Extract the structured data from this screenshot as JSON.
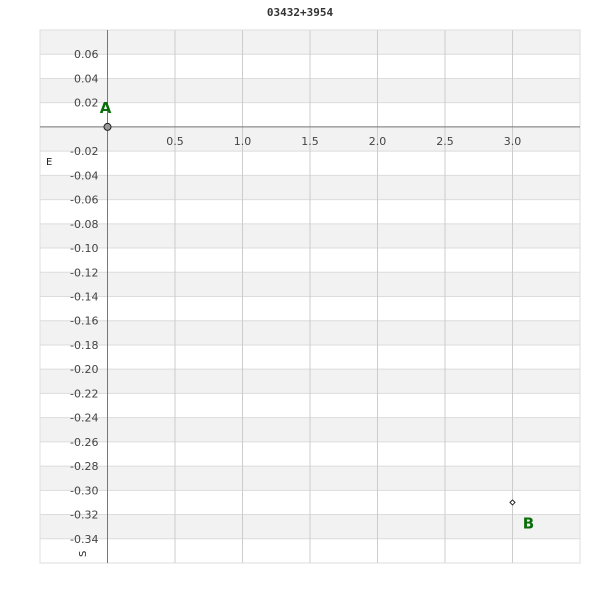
{
  "chart_data": {
    "type": "scatter",
    "title": "03432+3954",
    "xlabel": "",
    "ylabel": "",
    "xlim": [
      -0.5,
      3.5
    ],
    "ylim": [
      -0.36,
      0.08
    ],
    "x_ticks": [
      "0.5",
      "1.0",
      "1.5",
      "2.0",
      "2.5",
      "3.0"
    ],
    "y_ticks": [
      "0.06",
      "0.04",
      "0.02",
      "-0.02",
      "-0.04",
      "-0.06",
      "-0.08",
      "-0.10",
      "-0.12",
      "-0.14",
      "-0.16",
      "-0.18",
      "-0.20",
      "-0.22",
      "-0.24",
      "-0.26",
      "-0.28",
      "-0.30",
      "-0.32",
      "-0.34"
    ],
    "grid": true,
    "direction_labels": {
      "east": "E",
      "south": "S"
    },
    "points": [
      {
        "label": "A",
        "x": 0,
        "y": 0
      },
      {
        "label": "B",
        "x": 3.0,
        "y": -0.31
      }
    ],
    "colors": {
      "label": "#0a6e0a",
      "band": "#f2f2f2",
      "grid": "#cccccc",
      "axis": "#777777"
    }
  }
}
